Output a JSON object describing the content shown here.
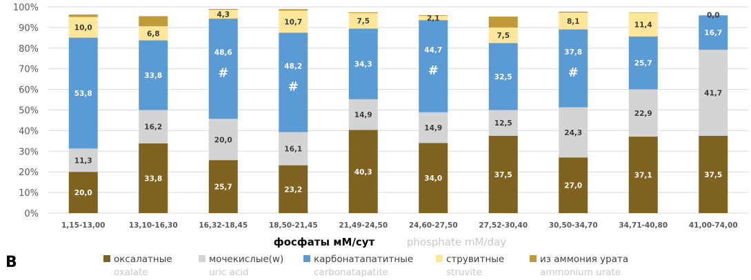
{
  "panel_label": "B",
  "chart_data": {
    "type": "bar",
    "stacked": true,
    "xlabel": "фосфаты мМ/сут",
    "xlabel_en": "phosphate   mM/day",
    "ylim": [
      0,
      100
    ],
    "yticks": [
      "0%",
      "10%",
      "20%",
      "30%",
      "40%",
      "50%",
      "60%",
      "70%",
      "80%",
      "90%",
      "100%"
    ],
    "grid": true,
    "legend_position": "bottom",
    "categories": [
      "1,15-13,00",
      "13,10-16,30",
      "16,32-18,45",
      "18,50-21,45",
      "21,49-24,50",
      "24,60-27,50",
      "27,52-30,40",
      "30,50-34,70",
      "34,71-40,80",
      "41,00-74,00"
    ],
    "series": [
      {
        "name": "оксалатные",
        "name_en": "oxalate",
        "color": "#7f6220",
        "label_color": "#ffffff",
        "values": [
          20.0,
          33.8,
          25.7,
          23.2,
          40.3,
          34.0,
          37.5,
          27.0,
          37.1,
          37.5
        ],
        "labels": [
          "20,0",
          "33,8",
          "25,7",
          "23,2",
          "40,3",
          "34,0",
          "37,5",
          "27,0",
          "37,1",
          "37,5"
        ]
      },
      {
        "name": "мочекислые(w)",
        "name_en": "uric acid",
        "color": "#d4d4d4",
        "label_color": "#3a3a3a",
        "values": [
          11.3,
          16.2,
          20.0,
          16.1,
          14.9,
          14.9,
          12.5,
          24.3,
          22.9,
          41.7
        ],
        "labels": [
          "11,3",
          "16,2",
          "20,0",
          "16,1",
          "14,9",
          "14,9",
          "12,5",
          "24,3",
          "22,9",
          "41,7"
        ]
      },
      {
        "name": "карбонатапатитные",
        "name_en": "carbonatapatite",
        "color": "#5b9bd5",
        "label_color": "#ffffff",
        "values": [
          53.8,
          33.8,
          48.6,
          48.2,
          34.3,
          44.7,
          32.5,
          37.8,
          25.7,
          16.7
        ],
        "labels": [
          "53,8",
          "33,8",
          "48,6",
          "48,2",
          "34,3",
          "44,7",
          "32,5",
          "37,8",
          "25,7",
          "16,7"
        ],
        "markers": [
          "",
          "",
          "#",
          "#",
          "",
          "#",
          "",
          "#",
          "",
          ""
        ]
      },
      {
        "name": "струвитные",
        "name_en": "struvite",
        "color": "#ffe699",
        "label_color": "#3a3a3a",
        "values": [
          10.0,
          6.8,
          4.3,
          10.7,
          7.5,
          2.1,
          7.5,
          8.1,
          11.4,
          0.0
        ],
        "labels": [
          "10,0",
          "6,8",
          "4,3",
          "10,7",
          "7,5",
          "2,1",
          "7,5",
          "8,1",
          "11,4",
          "0,0"
        ]
      },
      {
        "name": "из аммония урата",
        "name_en": "ammonium urate",
        "color": "#bf9a36",
        "label_color": "#3a3a3a",
        "values": [
          1.2,
          4.9,
          0.4,
          0.7,
          0.4,
          0.3,
          5.3,
          0.5,
          0.2,
          0.0
        ],
        "labels": [
          "",
          "",
          "",
          "",
          "",
          "",
          "",
          "",
          "",
          ""
        ]
      }
    ]
  }
}
